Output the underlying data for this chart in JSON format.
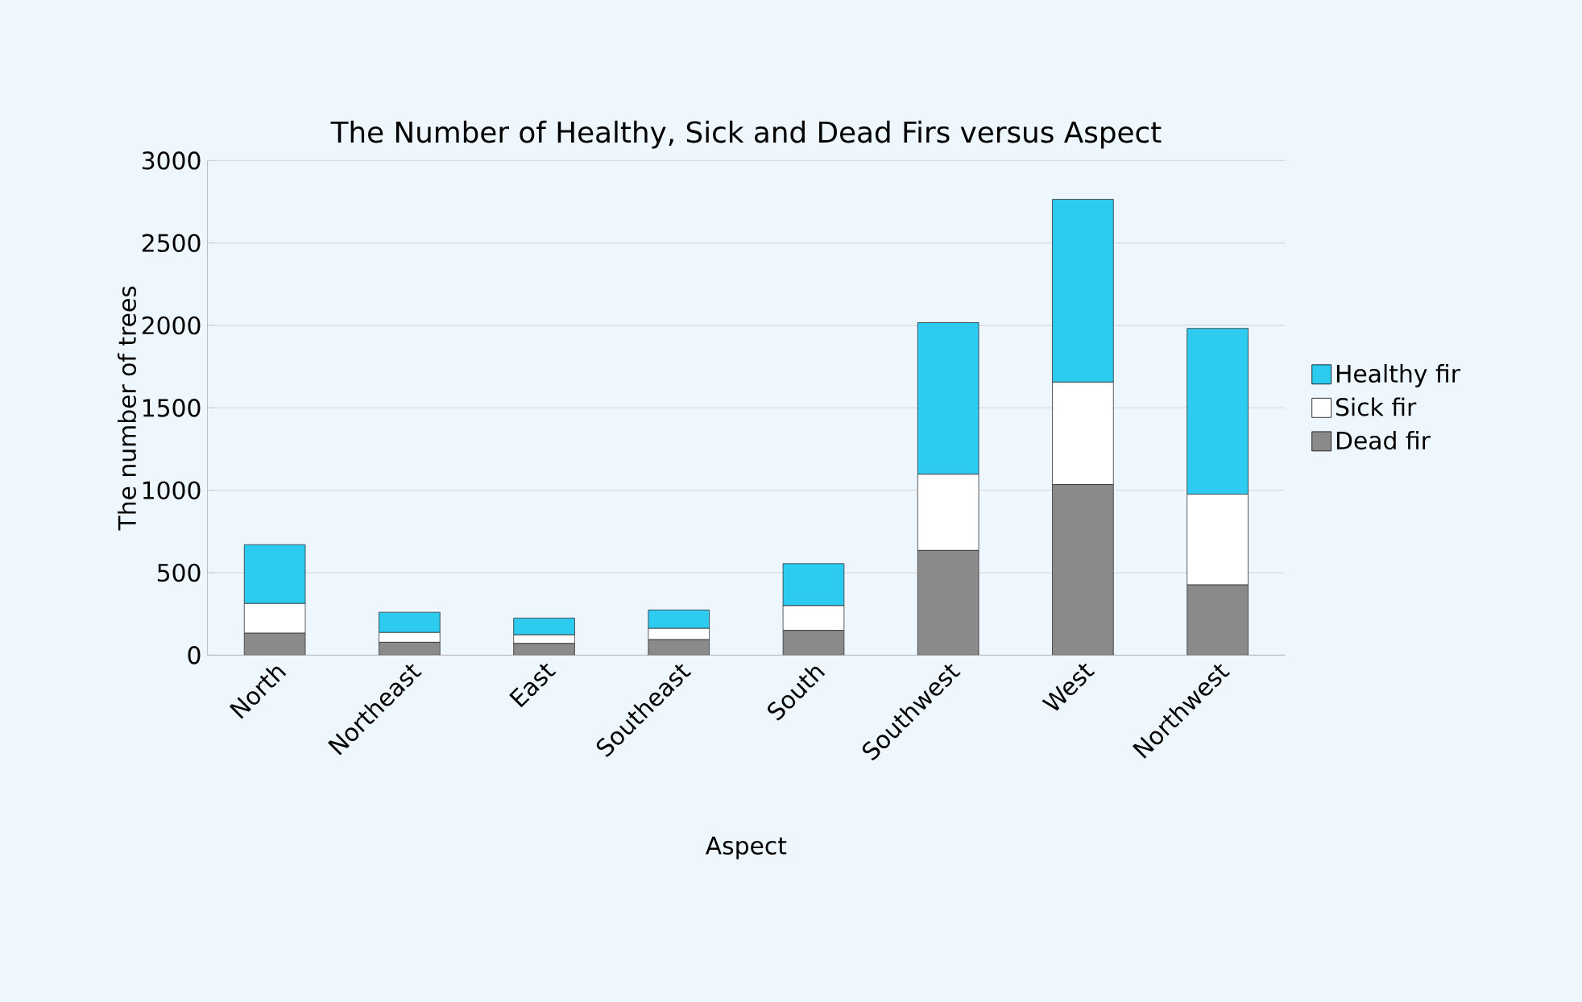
{
  "chart_data": {
    "type": "bar",
    "title": "The Number of Healthy, Sick and Dead Firs versus Aspect",
    "xlabel": "Aspect",
    "ylabel": "The number of trees",
    "categories": [
      "North",
      "Northeast",
      "East",
      "Southeast",
      "South",
      "Southwest",
      "West",
      "Northwest"
    ],
    "series": [
      {
        "name": "Dead fir",
        "color": "#8a8a8a",
        "values": [
          133,
          78,
          71,
          94,
          150,
          635,
          1035,
          426
        ]
      },
      {
        "name": "Sick fir",
        "color": "#ffffff",
        "values": [
          180,
          59,
          52,
          68,
          150,
          462,
          621,
          550
        ]
      },
      {
        "name": "Healthy fir",
        "color": "#2ccbef",
        "values": [
          357,
          123,
          102,
          112,
          255,
          920,
          1109,
          1006
        ]
      }
    ],
    "stacked": true,
    "ylim": [
      0,
      3000
    ],
    "yticks": [
      0,
      500,
      1000,
      1500,
      2000,
      2500,
      3000
    ],
    "grid": "y",
    "legend": "right"
  }
}
